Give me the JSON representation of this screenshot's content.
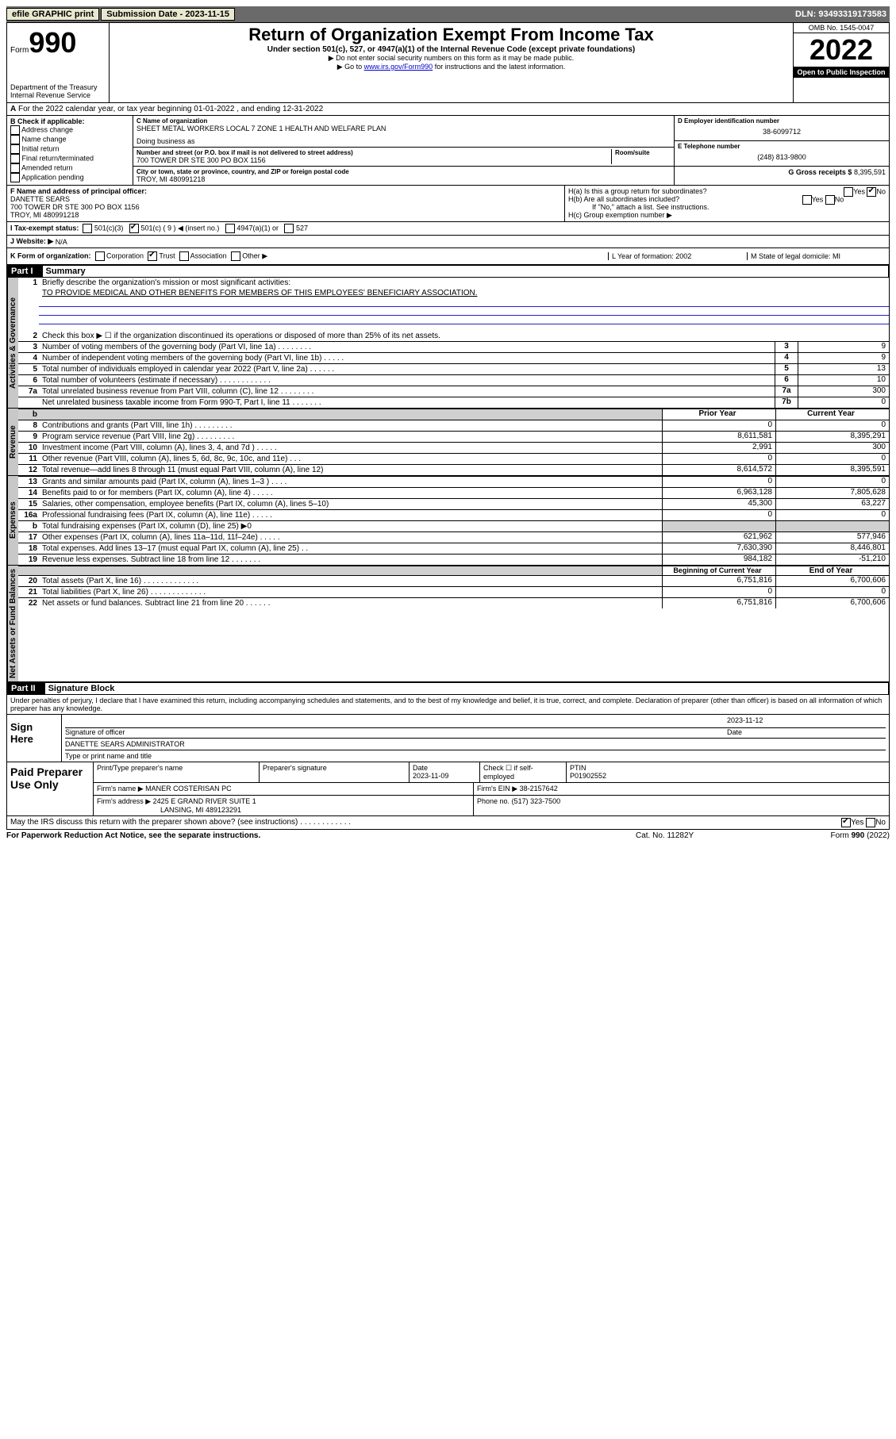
{
  "topbar": {
    "efile": "efile GRAPHIC print",
    "submission_label": "Submission Date - 2023-11-15",
    "dln": "DLN: 93493319173583"
  },
  "header": {
    "form_word": "Form",
    "form_number": "990",
    "dept": "Department of the Treasury",
    "irs": "Internal Revenue Service",
    "title": "Return of Organization Exempt From Income Tax",
    "subtitle": "Under section 501(c), 527, or 4947(a)(1) of the Internal Revenue Code (except private foundations)",
    "note1": "▶ Do not enter social security numbers on this form as it may be made public.",
    "note2_pre": "▶ Go to ",
    "note2_link": "www.irs.gov/Form990",
    "note2_post": " for instructions and the latest information.",
    "omb": "OMB No. 1545-0047",
    "year": "2022",
    "open": "Open to Public Inspection"
  },
  "line_a": "For the 2022 calendar year, or tax year beginning 01-01-2022    , and ending 12-31-2022",
  "box_b": {
    "label": "B Check if applicable:",
    "items": [
      "Address change",
      "Name change",
      "Initial return",
      "Final return/terminated",
      "Amended return",
      "Application pending"
    ]
  },
  "box_c": {
    "name_label": "C Name of organization",
    "name": "SHEET METAL WORKERS LOCAL 7 ZONE 1 HEALTH AND WELFARE PLAN",
    "dba_label": "Doing business as",
    "addr_label": "Number and street (or P.O. box if mail is not delivered to street address)",
    "room_label": "Room/suite",
    "addr": "700 TOWER DR STE 300 PO BOX 1156",
    "city_label": "City or town, state or province, country, and ZIP or foreign postal code",
    "city": "TROY, MI  480991218"
  },
  "box_d": {
    "label": "D Employer identification number",
    "val": "38-6099712"
  },
  "box_e": {
    "label": "E Telephone number",
    "val": "(248) 813-9800"
  },
  "box_g": {
    "label": "G Gross receipts $",
    "val": "8,395,591"
  },
  "box_f": {
    "label": "F Name and address of principal officer:",
    "name": "DANETTE SEARS",
    "addr": "700 TOWER DR STE 300 PO BOX 1156",
    "city": "TROY, MI  480991218"
  },
  "box_h": {
    "ha": "H(a)  Is this a group return for subordinates?",
    "hb": "H(b)  Are all subordinates included?",
    "hb_note": "If \"No,\" attach a list. See instructions.",
    "hc": "H(c)  Group exemption number ▶"
  },
  "line_i": {
    "label": "I  Tax-exempt status:",
    "opts": [
      "501(c)(3)",
      "501(c) ( 9 ) ◀ (insert no.)",
      "4947(a)(1) or",
      "527"
    ]
  },
  "line_j": {
    "label": "J  Website: ▶",
    "val": "N/A"
  },
  "line_k": {
    "k": "K Form of organization:",
    "opts": [
      "Corporation",
      "Trust",
      "Association",
      "Other ▶"
    ],
    "l": "L Year of formation: 2002",
    "m": "M State of legal domicile: MI"
  },
  "part1": {
    "label": "Part I",
    "title": "Summary"
  },
  "summary": {
    "l1": "Briefly describe the organization's mission or most significant activities:",
    "l1_text": "TO PROVIDE MEDICAL AND OTHER BENEFITS FOR MEMBERS OF THIS EMPLOYEES' BENEFICIARY ASSOCIATION.",
    "l2": "Check this box ▶ ☐ if the organization discontinued its operations or disposed of more than 25% of its net assets.",
    "rows_gov": [
      {
        "n": "3",
        "t": "Number of voting members of the governing body (Part VI, line 1a)  .    .    .    .    .    .    .    .",
        "box": "3",
        "v": "9"
      },
      {
        "n": "4",
        "t": "Number of independent voting members of the governing body (Part VI, line 1b)   .    .    .    .    .",
        "box": "4",
        "v": "9"
      },
      {
        "n": "5",
        "t": "Total number of individuals employed in calendar year 2022 (Part V, line 2a)   .    .    .    .    .    .",
        "box": "5",
        "v": "13"
      },
      {
        "n": "6",
        "t": "Total number of volunteers (estimate if necessary)   .    .    .    .    .    .    .    .    .    .    .    .",
        "box": "6",
        "v": "10"
      },
      {
        "n": "7a",
        "t": "Total unrelated business revenue from Part VIII, column (C), line 12  .    .    .    .    .    .    .    .",
        "box": "7a",
        "v": "300"
      },
      {
        "n": "",
        "t": "Net unrelated business taxable income from Form 990-T, Part I, line 11   .    .    .    .    .    .    .",
        "box": "7b",
        "v": "0"
      }
    ],
    "hdr_prior": "Prior Year",
    "hdr_curr": "Current Year",
    "rows_rev": [
      {
        "n": "8",
        "t": "Contributions and grants (Part VIII, line 1h)   .    .    .    .    .    .    .    .    .",
        "p": "0",
        "c": "0"
      },
      {
        "n": "9",
        "t": "Program service revenue (Part VIII, line 2g)   .    .    .    .    .    .    .    .    .",
        "p": "8,611,581",
        "c": "8,395,291"
      },
      {
        "n": "10",
        "t": "Investment income (Part VIII, column (A), lines 3, 4, and 7d )   .    .    .    .    .",
        "p": "2,991",
        "c": "300"
      },
      {
        "n": "11",
        "t": "Other revenue (Part VIII, column (A), lines 5, 6d, 8c, 9c, 10c, and 11e)   .    .    .",
        "p": "0",
        "c": "0"
      },
      {
        "n": "12",
        "t": "Total revenue—add lines 8 through 11 (must equal Part VIII, column (A), line 12)",
        "p": "8,614,572",
        "c": "8,395,591"
      }
    ],
    "rows_exp": [
      {
        "n": "13",
        "t": "Grants and similar amounts paid (Part IX, column (A), lines 1–3 )  .    .    .    .",
        "p": "0",
        "c": "0"
      },
      {
        "n": "14",
        "t": "Benefits paid to or for members (Part IX, column (A), line 4)   .    .    .    .    .",
        "p": "6,963,128",
        "c": "7,805,628"
      },
      {
        "n": "15",
        "t": "Salaries, other compensation, employee benefits (Part IX, column (A), lines 5–10)",
        "p": "45,300",
        "c": "63,227"
      },
      {
        "n": "16a",
        "t": "Professional fundraising fees (Part IX, column (A), line 11e)  .    .    .    .    .",
        "p": "0",
        "c": "0"
      },
      {
        "n": "b",
        "t": "Total fundraising expenses (Part IX, column (D), line 25) ▶0",
        "p": "",
        "c": "",
        "shade": true
      },
      {
        "n": "17",
        "t": "Other expenses (Part IX, column (A), lines 11a–11d, 11f–24e)   .    .    .    .    .",
        "p": "621,962",
        "c": "577,946"
      },
      {
        "n": "18",
        "t": "Total expenses. Add lines 13–17 (must equal Part IX, column (A), line 25)   .    .",
        "p": "7,630,390",
        "c": "8,446,801"
      },
      {
        "n": "19",
        "t": "Revenue less expenses. Subtract line 18 from line 12   .    .    .    .    .    .    .",
        "p": "984,182",
        "c": "-51,210"
      }
    ],
    "hdr_beg": "Beginning of Current Year",
    "hdr_end": "End of Year",
    "rows_net": [
      {
        "n": "20",
        "t": "Total assets (Part X, line 16)   .    .    .    .    .    .    .    .    .    .    .    .    .",
        "p": "6,751,816",
        "c": "6,700,606"
      },
      {
        "n": "21",
        "t": "Total liabilities (Part X, line 26)  .    .    .    .    .    .    .    .    .    .    .    .    .",
        "p": "0",
        "c": "0"
      },
      {
        "n": "22",
        "t": "Net assets or fund balances. Subtract line 21 from line 20   .    .    .    .    .    .",
        "p": "6,751,816",
        "c": "6,700,606"
      }
    ],
    "side_gov": "Activities & Governance",
    "side_rev": "Revenue",
    "side_exp": "Expenses",
    "side_net": "Net Assets or Fund Balances"
  },
  "part2": {
    "label": "Part II",
    "title": "Signature Block"
  },
  "sig": {
    "intro": "Under penalties of perjury, I declare that I have examined this return, including accompanying schedules and statements, and to the best of my knowledge and belief, it is true, correct, and complete. Declaration of preparer (other than officer) is based on all information of which preparer has any knowledge.",
    "sign_here": "Sign Here",
    "date": "2023-11-12",
    "sig_label": "Signature of officer",
    "date_label": "Date",
    "name": "DANETTE SEARS  ADMINISTRATOR",
    "name_label": "Type or print name and title"
  },
  "paid": {
    "label": "Paid Preparer Use Only",
    "h1": "Print/Type preparer's name",
    "h2": "Preparer's signature",
    "h3": "Date",
    "h3v": "2023-11-09",
    "h4": "Check ☐ if self-employed",
    "h5": "PTIN",
    "h5v": "P01902552",
    "firm_name_l": "Firm's name    ▶",
    "firm_name": "MANER COSTERISAN PC",
    "firm_ein_l": "Firm's EIN ▶",
    "firm_ein": "38-2157642",
    "firm_addr_l": "Firm's address ▶",
    "firm_addr": "2425 E GRAND RIVER SUITE 1",
    "firm_city": "LANSING, MI  489123291",
    "phone_l": "Phone no.",
    "phone": "(517) 323-7500",
    "discuss": "May the IRS discuss this return with the preparer shown above? (see instructions)   .    .    .    .    .    .    .    .    .    .    .    ."
  },
  "footer": {
    "pra": "For Paperwork Reduction Act Notice, see the separate instructions.",
    "cat": "Cat. No. 11282Y",
    "form": "Form 990 (2022)"
  }
}
